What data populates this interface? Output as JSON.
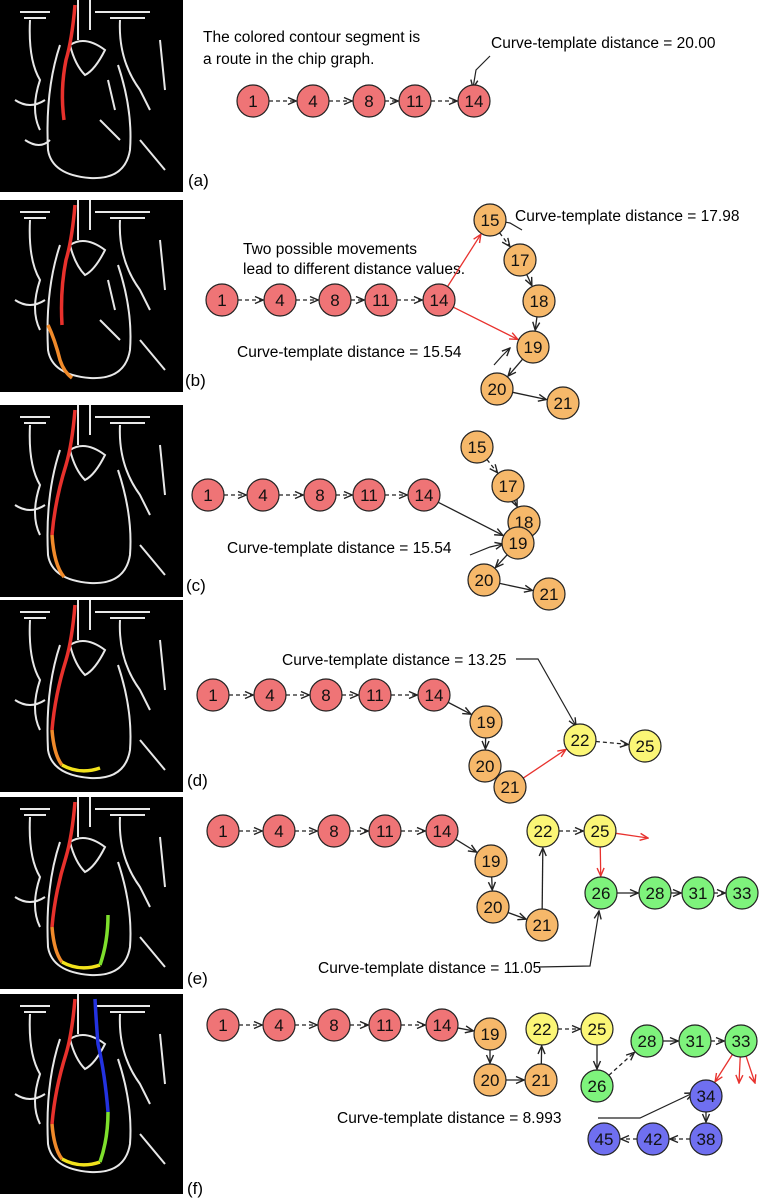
{
  "colors": {
    "red": "#ef7476",
    "orange": "#f6b86a",
    "yellow": "#fbf676",
    "green": "#7ef37c",
    "blue": "#6f6ff0",
    "arrow_red": "#e8322e",
    "arrow_black": "#222222"
  },
  "panels": [
    {
      "label": "(a)",
      "annotations": [
        {
          "text": "The colored contour segment is"
        },
        {
          "text": "a route in the chip graph."
        },
        {
          "text": "Curve-template distance = 20.00"
        }
      ],
      "nodes": [
        {
          "id": "1",
          "color": "red"
        },
        {
          "id": "4",
          "color": "red"
        },
        {
          "id": "8",
          "color": "red"
        },
        {
          "id": "11",
          "color": "red"
        },
        {
          "id": "14",
          "color": "red"
        }
      ]
    },
    {
      "label": "(b)",
      "annotations": [
        {
          "text": "Curve-template distance = 17.98"
        },
        {
          "text": "Two possible movements"
        },
        {
          "text": "lead to different distance values."
        },
        {
          "text": "Curve-template distance = 15.54"
        }
      ],
      "nodes": [
        {
          "id": "1",
          "color": "red"
        },
        {
          "id": "4",
          "color": "red"
        },
        {
          "id": "8",
          "color": "red"
        },
        {
          "id": "11",
          "color": "red"
        },
        {
          "id": "14",
          "color": "red"
        },
        {
          "id": "15",
          "color": "orange"
        },
        {
          "id": "17",
          "color": "orange"
        },
        {
          "id": "18",
          "color": "orange"
        },
        {
          "id": "19",
          "color": "orange"
        },
        {
          "id": "20",
          "color": "orange"
        },
        {
          "id": "21",
          "color": "orange"
        }
      ]
    },
    {
      "label": "(c)",
      "annotations": [
        {
          "text": "Curve-template distance = 15.54"
        }
      ],
      "nodes": [
        {
          "id": "15",
          "color": "orange"
        },
        {
          "id": "17",
          "color": "orange"
        },
        {
          "id": "18",
          "color": "orange"
        },
        {
          "id": "1",
          "color": "red"
        },
        {
          "id": "4",
          "color": "red"
        },
        {
          "id": "8",
          "color": "red"
        },
        {
          "id": "11",
          "color": "red"
        },
        {
          "id": "14",
          "color": "red"
        },
        {
          "id": "19",
          "color": "orange"
        },
        {
          "id": "20",
          "color": "orange"
        },
        {
          "id": "21",
          "color": "orange"
        }
      ]
    },
    {
      "label": "(d)",
      "annotations": [
        {
          "text": "Curve-template distance = 13.25"
        }
      ],
      "nodes": [
        {
          "id": "1",
          "color": "red"
        },
        {
          "id": "4",
          "color": "red"
        },
        {
          "id": "8",
          "color": "red"
        },
        {
          "id": "11",
          "color": "red"
        },
        {
          "id": "14",
          "color": "red"
        },
        {
          "id": "19",
          "color": "orange"
        },
        {
          "id": "20",
          "color": "orange"
        },
        {
          "id": "21",
          "color": "orange"
        },
        {
          "id": "22",
          "color": "yellow"
        },
        {
          "id": "25",
          "color": "yellow"
        }
      ]
    },
    {
      "label": "(e)",
      "annotations": [
        {
          "text": "Curve-template distance = 11.05"
        }
      ],
      "nodes": [
        {
          "id": "1",
          "color": "red"
        },
        {
          "id": "4",
          "color": "red"
        },
        {
          "id": "8",
          "color": "red"
        },
        {
          "id": "11",
          "color": "red"
        },
        {
          "id": "14",
          "color": "red"
        },
        {
          "id": "19",
          "color": "orange"
        },
        {
          "id": "20",
          "color": "orange"
        },
        {
          "id": "21",
          "color": "orange"
        },
        {
          "id": "22",
          "color": "yellow"
        },
        {
          "id": "25",
          "color": "yellow"
        },
        {
          "id": "26",
          "color": "green"
        },
        {
          "id": "28",
          "color": "green"
        },
        {
          "id": "31",
          "color": "green"
        },
        {
          "id": "33",
          "color": "green"
        }
      ]
    },
    {
      "label": "(f)",
      "annotations": [
        {
          "text": "Curve-template distance = 8.993"
        }
      ],
      "nodes": [
        {
          "id": "1",
          "color": "red"
        },
        {
          "id": "4",
          "color": "red"
        },
        {
          "id": "8",
          "color": "red"
        },
        {
          "id": "11",
          "color": "red"
        },
        {
          "id": "14",
          "color": "red"
        },
        {
          "id": "19",
          "color": "orange"
        },
        {
          "id": "20",
          "color": "orange"
        },
        {
          "id": "21",
          "color": "orange"
        },
        {
          "id": "22",
          "color": "yellow"
        },
        {
          "id": "25",
          "color": "yellow"
        },
        {
          "id": "26",
          "color": "green"
        },
        {
          "id": "28",
          "color": "green"
        },
        {
          "id": "31",
          "color": "green"
        },
        {
          "id": "33",
          "color": "green"
        },
        {
          "id": "34",
          "color": "blue"
        },
        {
          "id": "38",
          "color": "blue"
        },
        {
          "id": "42",
          "color": "blue"
        },
        {
          "id": "45",
          "color": "blue"
        }
      ]
    }
  ]
}
